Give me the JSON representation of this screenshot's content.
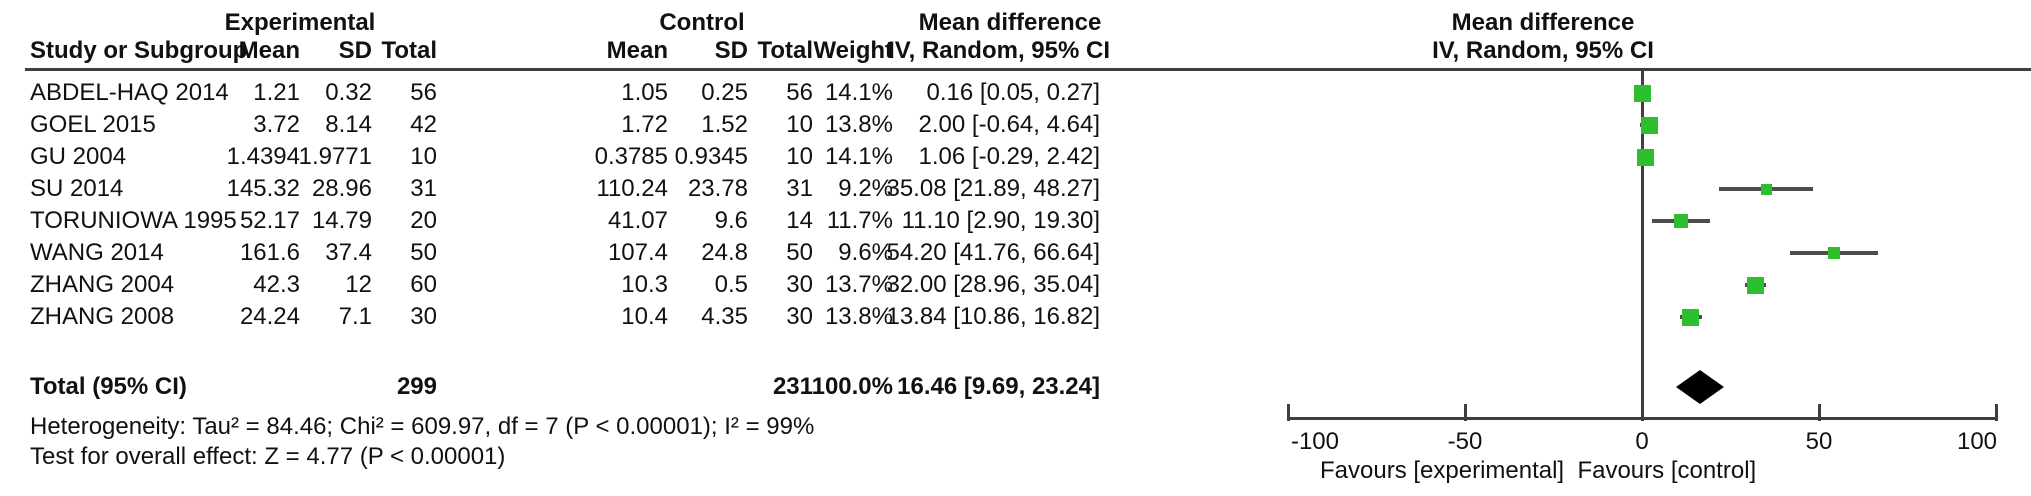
{
  "header": {
    "col_study": "Study or Subgroup",
    "group_experimental": "Experimental",
    "group_control": "Control",
    "col_mean": "Mean",
    "col_sd": "SD",
    "col_total": "Total",
    "col_weight": "Weight",
    "effect_title": "Mean difference",
    "effect_subtitle": "IV, Random, 95% CI",
    "plot_title": "Mean difference",
    "plot_subtitle": "IV, Random, 95% CI"
  },
  "chart_data": {
    "type": "forest",
    "effect_measure": "Mean difference",
    "method_label": "IV, Random, 95% CI",
    "x_axis": {
      "min": -100,
      "max": 100,
      "ticks": [
        -100,
        -50,
        0,
        50,
        100
      ],
      "tick_labels": [
        "-100",
        "-50",
        "0",
        "50",
        "100"
      ]
    },
    "favours_left": "Favours [experimental]",
    "favours_right": "Favours [control]",
    "studies": [
      {
        "name": "ABDEL-HAQ 2014",
        "exp_mean": "1.21",
        "exp_sd": "0.32",
        "exp_total": "56",
        "ctl_mean": "1.05",
        "ctl_sd": "0.25",
        "ctl_total": "56",
        "weight": "14.1%",
        "ci_text": "0.16 [0.05, 0.27]",
        "md": 0.16,
        "lo": 0.05,
        "hi": 0.27,
        "weight_pct": 14.1
      },
      {
        "name": "GOEL 2015",
        "exp_mean": "3.72",
        "exp_sd": "8.14",
        "exp_total": "42",
        "ctl_mean": "1.72",
        "ctl_sd": "1.52",
        "ctl_total": "10",
        "weight": "13.8%",
        "ci_text": "2.00 [-0.64, 4.64]",
        "md": 2.0,
        "lo": -0.64,
        "hi": 4.64,
        "weight_pct": 13.8
      },
      {
        "name": "GU 2004",
        "exp_mean": "1.4394",
        "exp_sd": "1.9771",
        "exp_total": "10",
        "ctl_mean": "0.3785",
        "ctl_sd": "0.9345",
        "ctl_total": "10",
        "weight": "14.1%",
        "ci_text": "1.06 [-0.29, 2.42]",
        "md": 1.06,
        "lo": -0.29,
        "hi": 2.42,
        "weight_pct": 14.1
      },
      {
        "name": "SU 2014",
        "exp_mean": "145.32",
        "exp_sd": "28.96",
        "exp_total": "31",
        "ctl_mean": "110.24",
        "ctl_sd": "23.78",
        "ctl_total": "31",
        "weight": "9.2%",
        "ci_text": "35.08 [21.89, 48.27]",
        "md": 35.08,
        "lo": 21.89,
        "hi": 48.27,
        "weight_pct": 9.2
      },
      {
        "name": "TORUNIOWA 1995",
        "exp_mean": "52.17",
        "exp_sd": "14.79",
        "exp_total": "20",
        "ctl_mean": "41.07",
        "ctl_sd": "9.6",
        "ctl_total": "14",
        "weight": "11.7%",
        "ci_text": "11.10 [2.90, 19.30]",
        "md": 11.1,
        "lo": 2.9,
        "hi": 19.3,
        "weight_pct": 11.7
      },
      {
        "name": "WANG 2014",
        "exp_mean": "161.6",
        "exp_sd": "37.4",
        "exp_total": "50",
        "ctl_mean": "107.4",
        "ctl_sd": "24.8",
        "ctl_total": "50",
        "weight": "9.6%",
        "ci_text": "54.20 [41.76, 66.64]",
        "md": 54.2,
        "lo": 41.76,
        "hi": 66.64,
        "weight_pct": 9.6
      },
      {
        "name": "ZHANG 2004",
        "exp_mean": "42.3",
        "exp_sd": "12",
        "exp_total": "60",
        "ctl_mean": "10.3",
        "ctl_sd": "0.5",
        "ctl_total": "30",
        "weight": "13.7%",
        "ci_text": "32.00 [28.96, 35.04]",
        "md": 32.0,
        "lo": 28.96,
        "hi": 35.04,
        "weight_pct": 13.7
      },
      {
        "name": "ZHANG 2008",
        "exp_mean": "24.24",
        "exp_sd": "7.1",
        "exp_total": "30",
        "ctl_mean": "10.4",
        "ctl_sd": "4.35",
        "ctl_total": "30",
        "weight": "13.8%",
        "ci_text": "13.84 [10.86, 16.82]",
        "md": 13.84,
        "lo": 10.86,
        "hi": 16.82,
        "weight_pct": 13.8
      }
    ],
    "total": {
      "label": "Total (95% CI)",
      "exp_total": "299",
      "ctl_total": "231",
      "weight": "100.0%",
      "ci_text": "16.46 [9.69, 23.24]",
      "md": 16.46,
      "lo": 9.69,
      "hi": 23.24
    }
  },
  "footer": {
    "heterogeneity": "Heterogeneity: Tau² = 84.46; Chi² = 609.97, df = 7 (P < 0.00001); I² = 99%",
    "overall_effect": "Test for overall effect: Z = 4.77 (P < 0.00001)"
  },
  "colors": {
    "marker_green": "#2dbd2d",
    "line_dark": "#4d4d4d",
    "diamond_black": "#000000",
    "text": "#111111"
  }
}
